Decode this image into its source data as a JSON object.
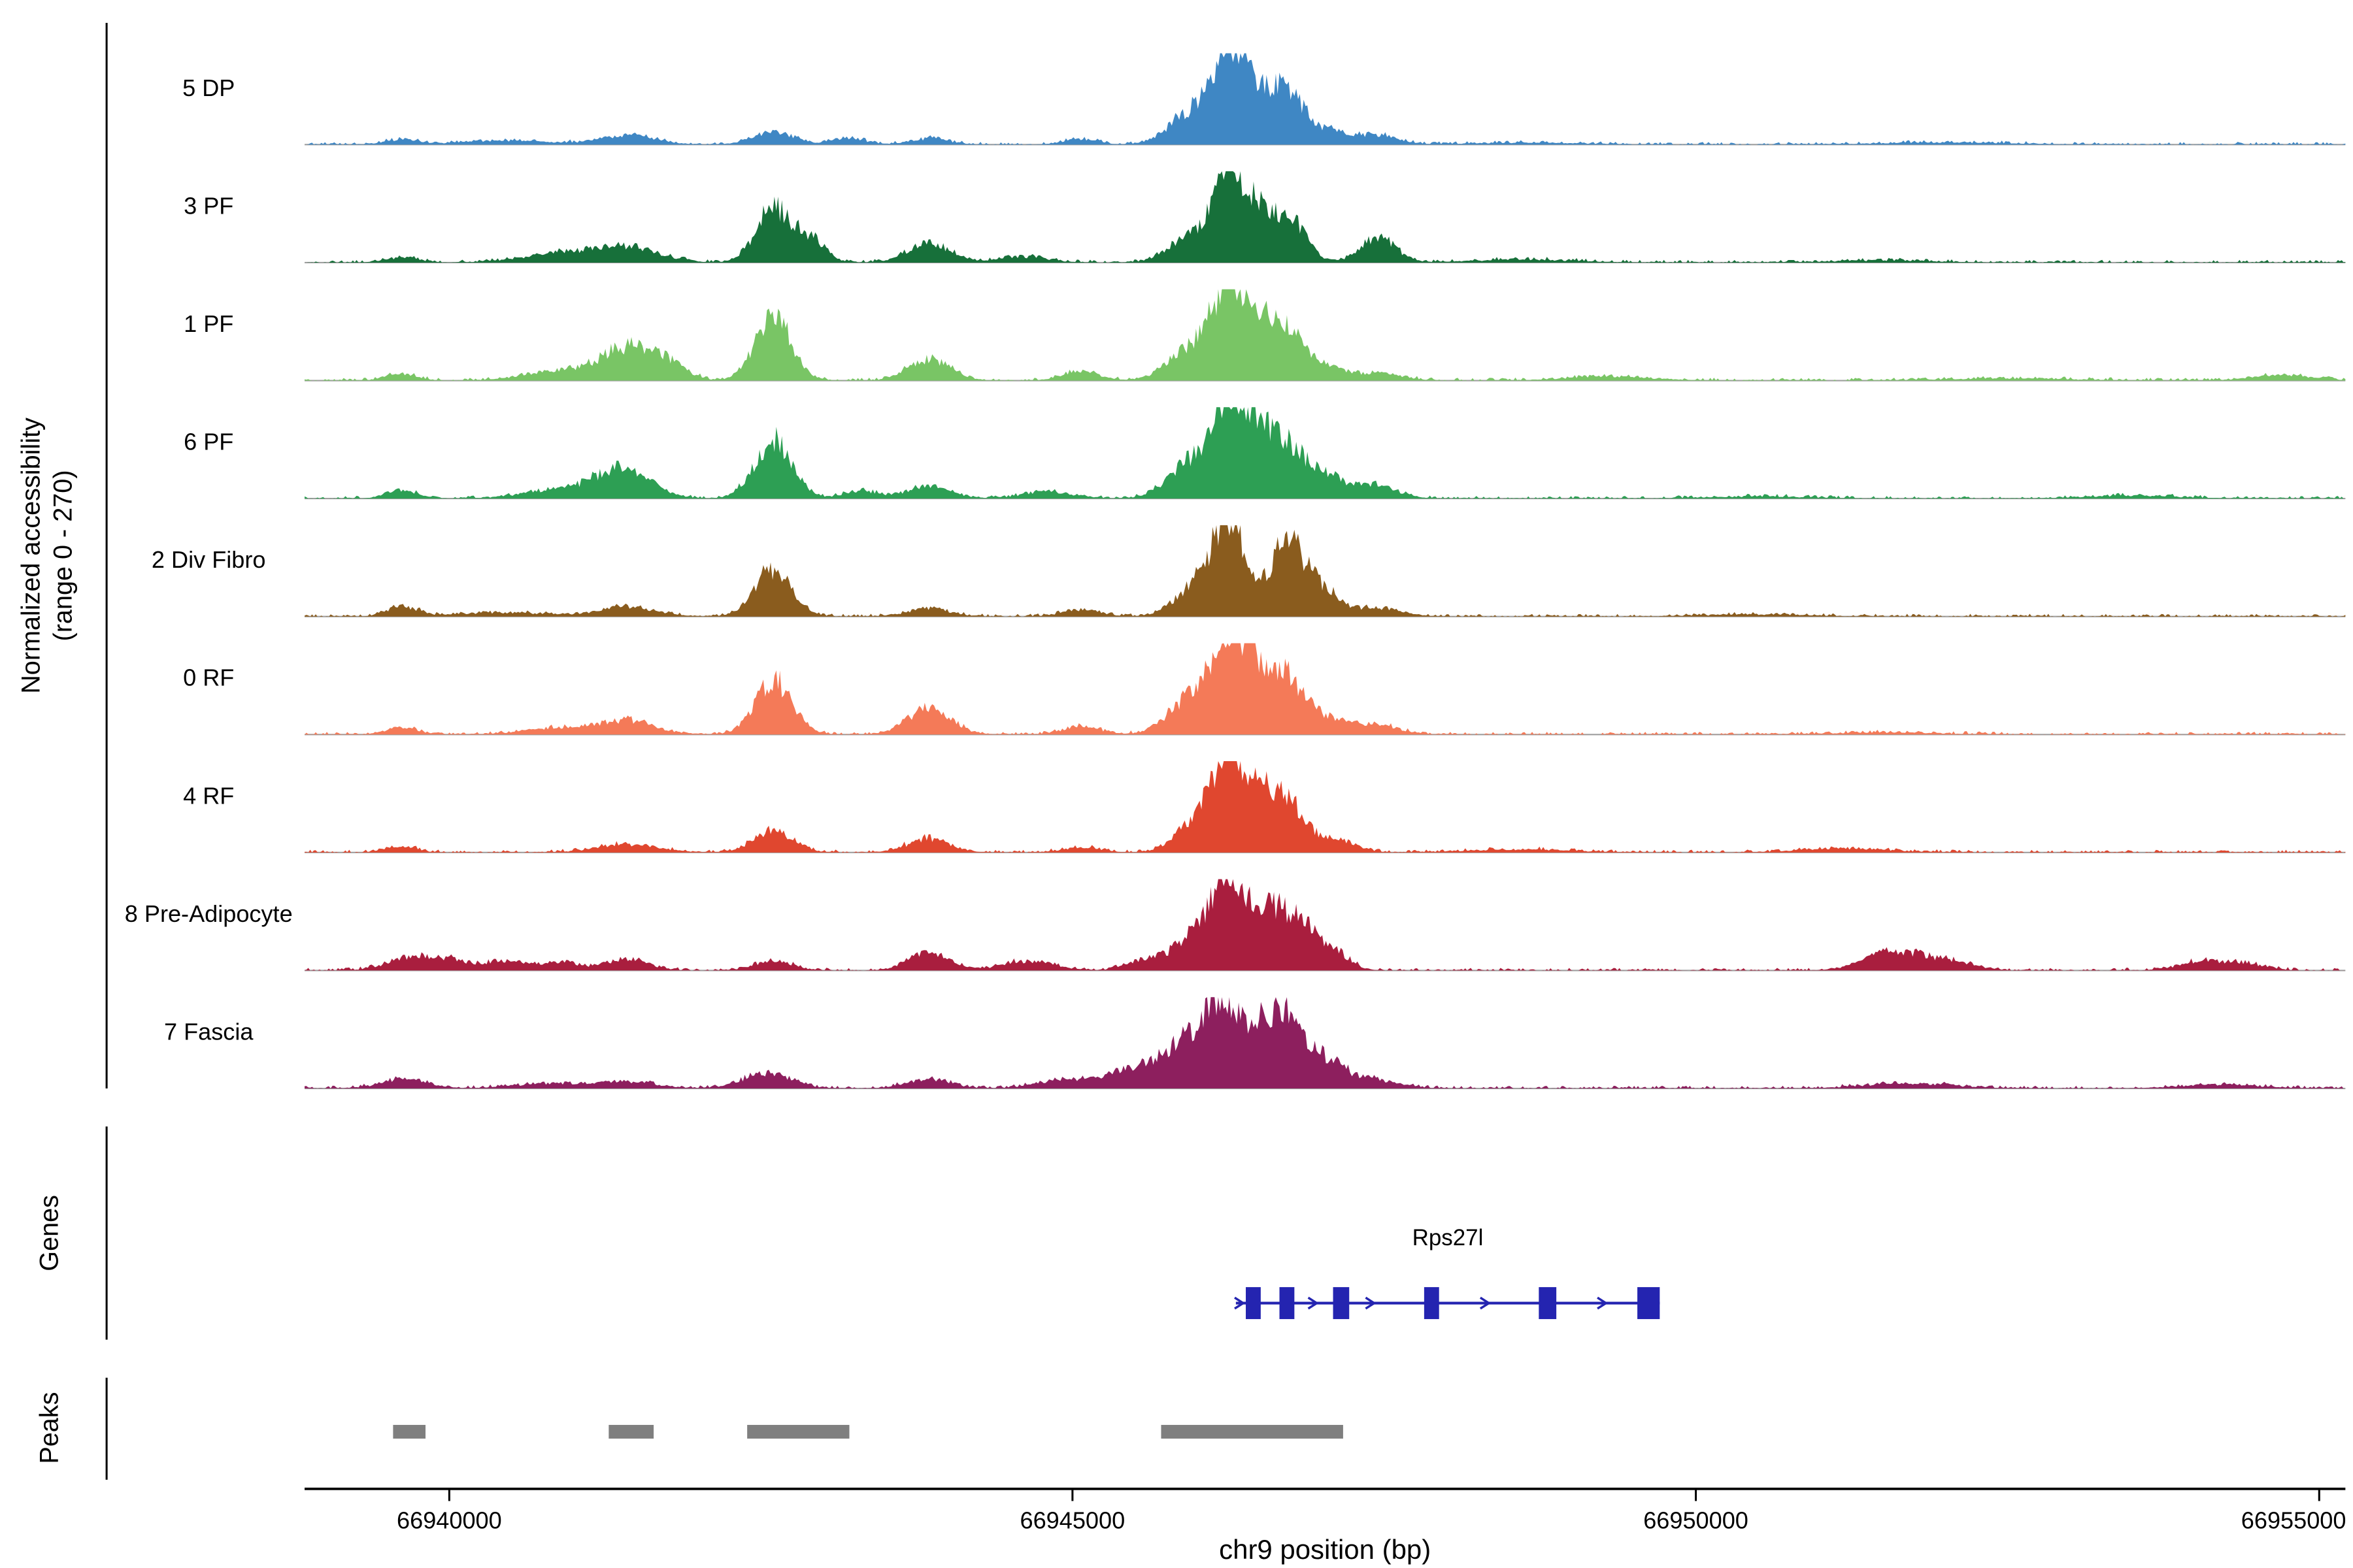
{
  "chart_data": {
    "type": "area",
    "title": "",
    "xlabel": "chr9 position (bp)",
    "ylabel_line1": "Normalized accessibility",
    "ylabel_line2": "(range 0 - 270)",
    "y_axis_range": [
      0,
      270
    ],
    "x_range": [
      66938840,
      66955210
    ],
    "x_ticks": [
      66940000,
      66945000,
      66950000,
      66955000
    ],
    "sections": {
      "genes": "Genes",
      "peaks": "Peaks"
    },
    "tracks": [
      {
        "label": "5 DP",
        "color": "#3f87c4",
        "bumps": [
          [
            66939620,
            130,
            0.05
          ],
          [
            66940450,
            350,
            0.04
          ],
          [
            66941430,
            220,
            0.09
          ],
          [
            66942600,
            160,
            0.13
          ],
          [
            66943200,
            140,
            0.06
          ],
          [
            66943850,
            150,
            0.06
          ],
          [
            66945070,
            130,
            0.06
          ],
          [
            66945950,
            170,
            0.35
          ],
          [
            66946250,
            120,
            1.0
          ],
          [
            66946480,
            110,
            0.45
          ],
          [
            66946720,
            130,
            0.55
          ],
          [
            66947050,
            140,
            0.15
          ],
          [
            66947450,
            160,
            0.1
          ],
          [
            66948600,
            400,
            0.02
          ],
          [
            66952000,
            500,
            0.02
          ]
        ]
      },
      {
        "label": "3 PF",
        "color": "#17703a",
        "bumps": [
          [
            66939620,
            130,
            0.05
          ],
          [
            66940900,
            300,
            0.09
          ],
          [
            66941430,
            250,
            0.16
          ],
          [
            66942600,
            140,
            0.58
          ],
          [
            66942900,
            120,
            0.22
          ],
          [
            66943850,
            170,
            0.2
          ],
          [
            66944600,
            200,
            0.06
          ],
          [
            66945950,
            170,
            0.28
          ],
          [
            66946250,
            115,
            1.0
          ],
          [
            66946480,
            110,
            0.4
          ],
          [
            66946720,
            140,
            0.48
          ],
          [
            66947450,
            140,
            0.26
          ],
          [
            66948600,
            400,
            0.03
          ],
          [
            66951500,
            400,
            0.02
          ]
        ]
      },
      {
        "label": "1 PF",
        "color": "#79c565",
        "bumps": [
          [
            66939620,
            120,
            0.07
          ],
          [
            66940900,
            280,
            0.1
          ],
          [
            66941430,
            210,
            0.33
          ],
          [
            66941750,
            150,
            0.15
          ],
          [
            66942600,
            145,
            0.66
          ],
          [
            66943850,
            165,
            0.23
          ],
          [
            66945070,
            150,
            0.09
          ],
          [
            66945950,
            180,
            0.33
          ],
          [
            66946250,
            130,
            0.95
          ],
          [
            66946480,
            115,
            0.45
          ],
          [
            66946720,
            140,
            0.52
          ],
          [
            66947050,
            140,
            0.12
          ],
          [
            66947450,
            180,
            0.08
          ],
          [
            66949300,
            350,
            0.04
          ],
          [
            66952500,
            500,
            0.02
          ],
          [
            66954700,
            250,
            0.05
          ]
        ]
      },
      {
        "label": "6 PF",
        "color": "#2d9f54",
        "bumps": [
          [
            66939620,
            120,
            0.09
          ],
          [
            66940900,
            280,
            0.1
          ],
          [
            66941400,
            210,
            0.31
          ],
          [
            66942600,
            150,
            0.62
          ],
          [
            66943300,
            140,
            0.08
          ],
          [
            66943850,
            170,
            0.13
          ],
          [
            66944800,
            200,
            0.07
          ],
          [
            66945950,
            180,
            0.38
          ],
          [
            66946250,
            130,
            1.0
          ],
          [
            66946480,
            120,
            0.55
          ],
          [
            66946720,
            145,
            0.55
          ],
          [
            66947050,
            150,
            0.22
          ],
          [
            66947450,
            160,
            0.13
          ],
          [
            66950500,
            400,
            0.02
          ],
          [
            66953500,
            350,
            0.03
          ]
        ]
      },
      {
        "label": "2 Div Fibro",
        "color": "#8a5c1e",
        "bumps": [
          [
            66939620,
            120,
            0.1
          ],
          [
            66940400,
            350,
            0.04
          ],
          [
            66941430,
            220,
            0.1
          ],
          [
            66942600,
            145,
            0.5
          ],
          [
            66943850,
            160,
            0.09
          ],
          [
            66945070,
            150,
            0.07
          ],
          [
            66945990,
            160,
            0.32
          ],
          [
            66946250,
            120,
            1.0
          ],
          [
            66946720,
            150,
            0.78
          ],
          [
            66947030,
            130,
            0.22
          ],
          [
            66947450,
            180,
            0.09
          ],
          [
            66950500,
            400,
            0.02
          ]
        ]
      },
      {
        "label": "0 RF",
        "color": "#f47a58",
        "bumps": [
          [
            66939620,
            120,
            0.08
          ],
          [
            66940900,
            280,
            0.07
          ],
          [
            66941430,
            210,
            0.14
          ],
          [
            66942600,
            150,
            0.56
          ],
          [
            66943850,
            170,
            0.28
          ],
          [
            66945070,
            150,
            0.08
          ],
          [
            66945950,
            180,
            0.38
          ],
          [
            66946250,
            130,
            0.95
          ],
          [
            66946480,
            120,
            0.52
          ],
          [
            66946720,
            140,
            0.57
          ],
          [
            66947050,
            150,
            0.16
          ],
          [
            66947450,
            180,
            0.09
          ],
          [
            66951500,
            400,
            0.02
          ]
        ]
      },
      {
        "label": "4 RF",
        "color": "#e0472f",
        "bumps": [
          [
            66939620,
            120,
            0.06
          ],
          [
            66941430,
            250,
            0.08
          ],
          [
            66942600,
            160,
            0.22
          ],
          [
            66943850,
            170,
            0.14
          ],
          [
            66945070,
            150,
            0.05
          ],
          [
            66945990,
            160,
            0.32
          ],
          [
            66946250,
            120,
            1.0
          ],
          [
            66946480,
            120,
            0.48
          ],
          [
            66946720,
            145,
            0.52
          ],
          [
            66947120,
            150,
            0.13
          ],
          [
            66948600,
            400,
            0.03
          ],
          [
            66951200,
            350,
            0.04
          ]
        ]
      },
      {
        "label": "8 Pre-Adipocyte",
        "color": "#a91e3e",
        "bumps": [
          [
            66939680,
            180,
            0.13
          ],
          [
            66940000,
            140,
            0.1
          ],
          [
            66940450,
            180,
            0.1
          ],
          [
            66940900,
            140,
            0.09
          ],
          [
            66941430,
            160,
            0.13
          ],
          [
            66942600,
            150,
            0.1
          ],
          [
            66943850,
            160,
            0.19
          ],
          [
            66944650,
            200,
            0.1
          ],
          [
            66945600,
            150,
            0.12
          ],
          [
            66945990,
            160,
            0.38
          ],
          [
            66946250,
            120,
            1.0
          ],
          [
            66946550,
            140,
            0.55
          ],
          [
            66946800,
            140,
            0.45
          ],
          [
            66947080,
            130,
            0.2
          ],
          [
            66951600,
            230,
            0.21
          ],
          [
            66952050,
            180,
            0.08
          ],
          [
            66954100,
            200,
            0.1
          ],
          [
            66954450,
            150,
            0.05
          ]
        ]
      },
      {
        "label": "7 Fascia",
        "color": "#8d1f5e",
        "bumps": [
          [
            66939640,
            180,
            0.1
          ],
          [
            66940800,
            280,
            0.05
          ],
          [
            66941430,
            220,
            0.07
          ],
          [
            66942550,
            190,
            0.16
          ],
          [
            66943850,
            170,
            0.1
          ],
          [
            66944950,
            220,
            0.09
          ],
          [
            66945500,
            200,
            0.22
          ],
          [
            66945880,
            150,
            0.45
          ],
          [
            66946180,
            130,
            0.92
          ],
          [
            66946480,
            130,
            0.55
          ],
          [
            66946720,
            140,
            0.68
          ],
          [
            66947030,
            150,
            0.28
          ],
          [
            66947400,
            200,
            0.09
          ],
          [
            66951700,
            350,
            0.05
          ],
          [
            66954200,
            300,
            0.04
          ]
        ]
      }
    ],
    "genes": [
      {
        "name": "Rps27l",
        "strand": "+",
        "color": "#2424b0",
        "start": 66946310,
        "end": 66949710,
        "exons": [
          [
            66946390,
            66946510
          ],
          [
            66946660,
            66946780
          ],
          [
            66947090,
            66947220
          ],
          [
            66947820,
            66947940
          ],
          [
            66948740,
            66948880
          ],
          [
            66949530,
            66949710
          ]
        ],
        "arrows": [
          66946340,
          66946930,
          66947390,
          66948310,
          66949250
        ]
      }
    ],
    "peaks": {
      "color": "#7f7f7f",
      "intervals": [
        [
          66939550,
          66939810
        ],
        [
          66941280,
          66941640
        ],
        [
          66942390,
          66943210
        ],
        [
          66945710,
          66947170
        ]
      ]
    }
  }
}
